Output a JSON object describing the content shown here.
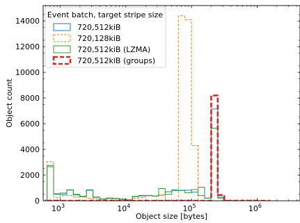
{
  "chart_data": {
    "type": "histogram",
    "xlabel": "Object size [bytes]",
    "ylabel": "Object count",
    "xscale": "log",
    "xlim": [
      550,
      4500000
    ],
    "ylim": [
      0,
      15200
    ],
    "grid": false,
    "legend": {
      "title": "Event batch, target stripe size",
      "position": "top-left"
    },
    "yticks": [
      0,
      2000,
      4000,
      6000,
      8000,
      10000,
      12000,
      14000
    ],
    "ytick_labels": [
      "0",
      "2000",
      "4000",
      "6000",
      "8000",
      "10000",
      "12000",
      "14000"
    ],
    "xticks": [
      1000,
      10000,
      100000,
      1000000
    ],
    "xtick_labels": [
      {
        "base": "10",
        "exp": "3"
      },
      {
        "base": "10",
        "exp": "4"
      },
      {
        "base": "10",
        "exp": "5"
      },
      {
        "base": "10",
        "exp": "6"
      }
    ],
    "bin_edges": [
      631,
      794,
      1000,
      1259,
      1585,
      1995,
      2512,
      3162,
      3981,
      5012,
      6310,
      7943,
      10000,
      12589,
      15849,
      19953,
      25119,
      31623,
      39811,
      50119,
      63096,
      79433,
      100000,
      125893,
      158489,
      199526,
      251189,
      316228,
      398107,
      501187,
      630957,
      794328,
      1000000,
      1258925,
      1584893
    ],
    "series": [
      {
        "name": "720,512kiB",
        "color": "#1f77b4",
        "style": "solid",
        "width": 1,
        "values": [
          2750,
          550,
          500,
          830,
          450,
          310,
          820,
          270,
          150,
          200,
          180,
          120,
          60,
          330,
          380,
          400,
          370,
          440,
          700,
          800,
          800,
          820,
          680,
          1050,
          200,
          7150,
          280,
          20,
          0,
          0,
          0,
          0,
          0,
          0
        ]
      },
      {
        "name": "720,128kiB",
        "color": "#ff7f0e",
        "style": "dashed",
        "width": 1,
        "values": [
          3050,
          250,
          400,
          400,
          300,
          320,
          200,
          150,
          100,
          150,
          160,
          100,
          60,
          200,
          250,
          380,
          360,
          450,
          0,
          0,
          14400,
          14100,
          4300,
          0,
          0,
          0,
          0,
          0,
          0,
          0,
          0,
          0,
          0,
          0
        ]
      },
      {
        "name": "720,512kiB (LZMA)",
        "color": "#2ca02c",
        "style": "solid",
        "width": 1,
        "values": [
          2650,
          500,
          600,
          850,
          500,
          350,
          850,
          300,
          150,
          220,
          170,
          150,
          80,
          350,
          420,
          420,
          360,
          950,
          500,
          850,
          820,
          620,
          880,
          400,
          200,
          5650,
          200,
          20,
          0,
          0,
          0,
          0,
          0,
          0
        ]
      },
      {
        "name": "720,512kiB (groups)",
        "color": "#d62728",
        "style": "dashed",
        "width": 2.6,
        "values": [
          0,
          0,
          0,
          0,
          0,
          0,
          0,
          0,
          0,
          0,
          0,
          0,
          0,
          0,
          0,
          0,
          0,
          0,
          0,
          0,
          0,
          0,
          0,
          0,
          0,
          8200,
          450,
          0,
          0,
          0,
          0,
          0,
          0,
          0
        ]
      }
    ]
  }
}
